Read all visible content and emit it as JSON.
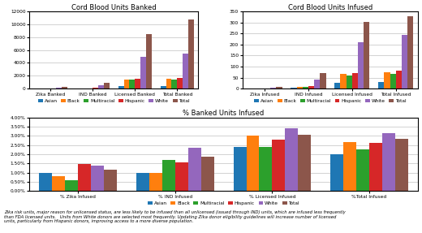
{
  "chart_data": [
    {
      "type": "bar",
      "title": "Cord Blood Units Banked",
      "categories": [
        "Zika Banked",
        "IND Banked",
        "Licensed Banked",
        "Total Banked"
      ],
      "series": [
        {
          "name": "Asian",
          "values": [
            10,
            25,
            350,
            380
          ]
        },
        {
          "name": "Black",
          "values": [
            15,
            60,
            1400,
            1480
          ]
        },
        {
          "name": "Multiracial",
          "values": [
            10,
            40,
            1400,
            1450
          ]
        },
        {
          "name": "Hispanic",
          "values": [
            40,
            120,
            1500,
            1680
          ]
        },
        {
          "name": "White",
          "values": [
            150,
            500,
            5000,
            5500
          ]
        },
        {
          "name": "Total",
          "values": [
            250,
            900,
            8500,
            10800
          ]
        }
      ],
      "ylim": [
        0,
        12000
      ],
      "yticks": [
        0,
        2000,
        4000,
        6000,
        8000,
        10000,
        12000
      ],
      "grid": true,
      "legend": "upper center"
    },
    {
      "type": "bar",
      "title": "Cord Blood Units Infused",
      "categories": [
        "Zika Infused",
        "IND Infused",
        "Licensed Infused",
        "Total Infused"
      ],
      "series": [
        {
          "name": "Asian",
          "values": [
            1,
            3,
            25,
            28
          ]
        },
        {
          "name": "Black",
          "values": [
            1,
            8,
            65,
            73
          ]
        },
        {
          "name": "Multiracial",
          "values": [
            1,
            7,
            60,
            67
          ]
        },
        {
          "name": "Hispanic",
          "values": [
            2,
            10,
            70,
            80
          ]
        },
        {
          "name": "White",
          "values": [
            3,
            40,
            210,
            245
          ]
        },
        {
          "name": "Total",
          "values": [
            8,
            70,
            305,
            330
          ]
        }
      ],
      "ylim": [
        0,
        350
      ],
      "yticks": [
        0,
        50,
        100,
        150,
        200,
        250,
        300,
        350
      ],
      "grid": true,
      "legend": "upper center"
    },
    {
      "type": "bar",
      "title": "% Banked Units Infused",
      "categories": [
        "% Zika Infused",
        "% IND Infused",
        "% Licensed Infused",
        "%Total Infused"
      ],
      "series": [
        {
          "name": "Asian",
          "values": [
            0.01,
            0.01,
            0.024,
            0.02
          ]
        },
        {
          "name": "Black",
          "values": [
            0.008,
            0.01,
            0.03,
            0.0265
          ]
        },
        {
          "name": "Multiracial",
          "values": [
            0.006,
            0.017,
            0.024,
            0.0225
          ]
        },
        {
          "name": "Hispanic",
          "values": [
            0.0145,
            0.0155,
            0.028,
            0.026
          ]
        },
        {
          "name": "White",
          "values": [
            0.014,
            0.0235,
            0.034,
            0.0315
          ]
        },
        {
          "name": "Total",
          "values": [
            0.0115,
            0.0185,
            0.0305,
            0.0285
          ]
        }
      ],
      "ylim": [
        0,
        0.04
      ],
      "yticks": [
        {
          "value": 0.0,
          "label": "0.00%"
        },
        {
          "value": 0.005,
          "label": "0.50%"
        },
        {
          "value": 0.01,
          "label": "1.00%"
        },
        {
          "value": 0.015,
          "label": "1.50%"
        },
        {
          "value": 0.02,
          "label": "2.00%"
        },
        {
          "value": 0.025,
          "label": "2.50%"
        },
        {
          "value": 0.03,
          "label": "3.00%"
        },
        {
          "value": 0.035,
          "label": "3.50%"
        },
        {
          "value": 0.04,
          "label": "4.00%"
        }
      ],
      "grid": true,
      "legend": "upper center",
      "annotations": [
        "Zika risk units, major reason for unlicensed status, are less likely to be infused than all unlicensed (issued through IND) units, which are infused less frequently\nthan FDA licensed units.   Units from White donors are selected most frequently. Updating Zika donor eligibility guidelines will increase number of licensed\nunits, particularly from Hispanic donors, improving access to a more diverse population."
      ]
    }
  ]
}
